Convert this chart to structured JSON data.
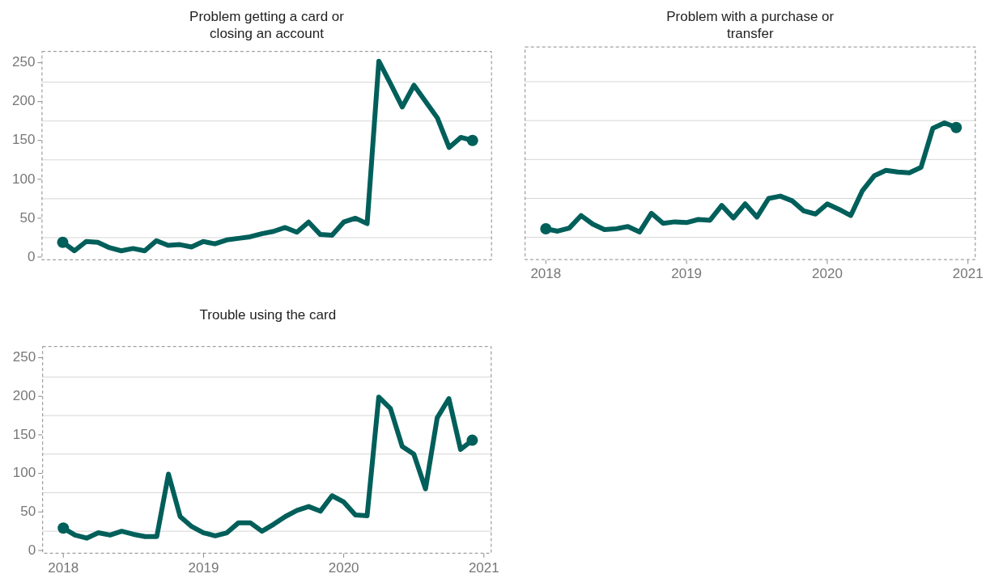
{
  "chart_data": [
    {
      "type": "line",
      "title": "Problem getting a card or closing an account",
      "x": [
        "2018-01",
        "2018-02",
        "2018-03",
        "2018-04",
        "2018-05",
        "2018-06",
        "2018-07",
        "2018-08",
        "2018-09",
        "2018-10",
        "2018-11",
        "2018-12",
        "2019-01",
        "2019-02",
        "2019-03",
        "2019-04",
        "2019-05",
        "2019-06",
        "2019-07",
        "2019-08",
        "2019-09",
        "2019-10",
        "2019-11",
        "2019-12",
        "2020-01",
        "2020-02",
        "2020-03",
        "2020-04",
        "2020-05",
        "2020-06",
        "2020-07",
        "2020-08",
        "2020-09",
        "2020-10",
        "2020-11",
        "2020-12"
      ],
      "series": [
        {
          "color": "#005f5a",
          "values": [
            19,
            8,
            20,
            19,
            12,
            8,
            11,
            8,
            21,
            15,
            16,
            13,
            20,
            17,
            22,
            24,
            26,
            30,
            33,
            38,
            32,
            45,
            29,
            28,
            45,
            50,
            43,
            252,
            223,
            193,
            221,
            200,
            179,
            141,
            154,
            150
          ]
        },
        {
          "type": "scatter",
          "color": "#005f5a",
          "x": [
            "2018-01",
            "2020-12"
          ],
          "values": [
            19,
            150
          ]
        }
      ],
      "xlim": [
        "2017-11-07",
        "2021-01-21"
      ],
      "xticks": [
        "2018",
        "2019",
        "2020",
        "2021"
      ],
      "ylim": [
        -4,
        265
      ],
      "yticks": [
        0,
        {
          "value": 25,
          "label": null
        },
        50,
        {
          "value": 75,
          "label": null
        },
        100,
        {
          "value": 125,
          "label": null
        },
        150,
        {
          "value": 175,
          "label": null
        },
        200,
        {
          "value": 225,
          "label": null
        },
        250
      ],
      "tick_labels": "y",
      "grid": "y",
      "legend": false,
      "line_style": "solid"
    },
    {
      "type": "line",
      "title": "Problem with a purchase or transfer",
      "x": [
        "2018-01",
        "2018-02",
        "2018-03",
        "2018-04",
        "2018-05",
        "2018-06",
        "2018-07",
        "2018-08",
        "2018-09",
        "2018-10",
        "2018-11",
        "2018-12",
        "2019-01",
        "2019-02",
        "2019-03",
        "2019-04",
        "2019-05",
        "2019-06",
        "2019-07",
        "2019-08",
        "2019-09",
        "2019-10",
        "2019-11",
        "2019-12",
        "2020-01",
        "2020-02",
        "2020-03",
        "2020-04",
        "2020-05",
        "2020-06",
        "2020-07",
        "2020-08",
        "2020-09",
        "2020-10",
        "2020-11",
        "2020-12"
      ],
      "series": [
        {
          "color": "#005f5a",
          "values": [
            36,
            33,
            37,
            53,
            42,
            35,
            36,
            39,
            32,
            56,
            43,
            45,
            44,
            48,
            47,
            66,
            50,
            68,
            51,
            75,
            78,
            72,
            59,
            55,
            68,
            61,
            53,
            85,
            104,
            111,
            109,
            108,
            115,
            165,
            172,
            166
          ]
        },
        {
          "type": "scatter",
          "color": "#005f5a",
          "x": [
            "2018-01",
            "2020-12"
          ],
          "values": [
            36,
            166
          ]
        }
      ],
      "xlim": [
        "2017-11-07",
        "2021-01-21"
      ],
      "xticks": [
        "2018",
        "2019",
        "2020",
        "2021"
      ],
      "ylim": [
        -4,
        270
      ],
      "yticks": [
        0,
        {
          "value": 25,
          "label": null
        },
        50,
        {
          "value": 75,
          "label": null
        },
        100,
        {
          "value": 125,
          "label": null
        },
        150,
        {
          "value": 175,
          "label": null
        },
        200,
        {
          "value": 225,
          "label": null
        },
        250
      ],
      "tick_labels": "x",
      "grid": "y",
      "legend": false,
      "line_style": "solid"
    },
    {
      "type": "line",
      "title": "Trouble using the card",
      "x": [
        "2018-01",
        "2018-02",
        "2018-03",
        "2018-04",
        "2018-05",
        "2018-06",
        "2018-07",
        "2018-08",
        "2018-09",
        "2018-10",
        "2018-11",
        "2018-12",
        "2019-01",
        "2019-02",
        "2019-03",
        "2019-04",
        "2019-05",
        "2019-06",
        "2019-07",
        "2019-08",
        "2019-09",
        "2019-10",
        "2019-11",
        "2019-12",
        "2020-01",
        "2020-02",
        "2020-03",
        "2020-04",
        "2020-05",
        "2020-06",
        "2020-07",
        "2020-08",
        "2020-09",
        "2020-10",
        "2020-11",
        "2020-12"
      ],
      "series": [
        {
          "color": "#005f5a",
          "values": [
            29,
            20,
            16,
            23,
            20,
            25,
            21,
            18,
            18,
            99,
            44,
            31,
            23,
            19,
            23,
            36,
            36,
            25,
            34,
            44,
            52,
            57,
            51,
            71,
            63,
            46,
            45,
            199,
            184,
            135,
            125,
            80,
            172,
            197,
            131,
            143
          ]
        },
        {
          "type": "scatter",
          "color": "#005f5a",
          "x": [
            "2018-01",
            "2020-12"
          ],
          "values": [
            29,
            143
          ]
        }
      ],
      "xlim": [
        "2017-11-07",
        "2021-01-21"
      ],
      "xticks": [
        "2018",
        "2019",
        "2020",
        "2021"
      ],
      "ylim": [
        -4,
        265
      ],
      "yticks": [
        0,
        {
          "value": 25,
          "label": null
        },
        50,
        {
          "value": 75,
          "label": null
        },
        100,
        {
          "value": 125,
          "label": null
        },
        150,
        {
          "value": 175,
          "label": null
        },
        200,
        {
          "value": 225,
          "label": null
        },
        250
      ],
      "grid": "y",
      "legend": false,
      "line_style": "solid"
    }
  ]
}
